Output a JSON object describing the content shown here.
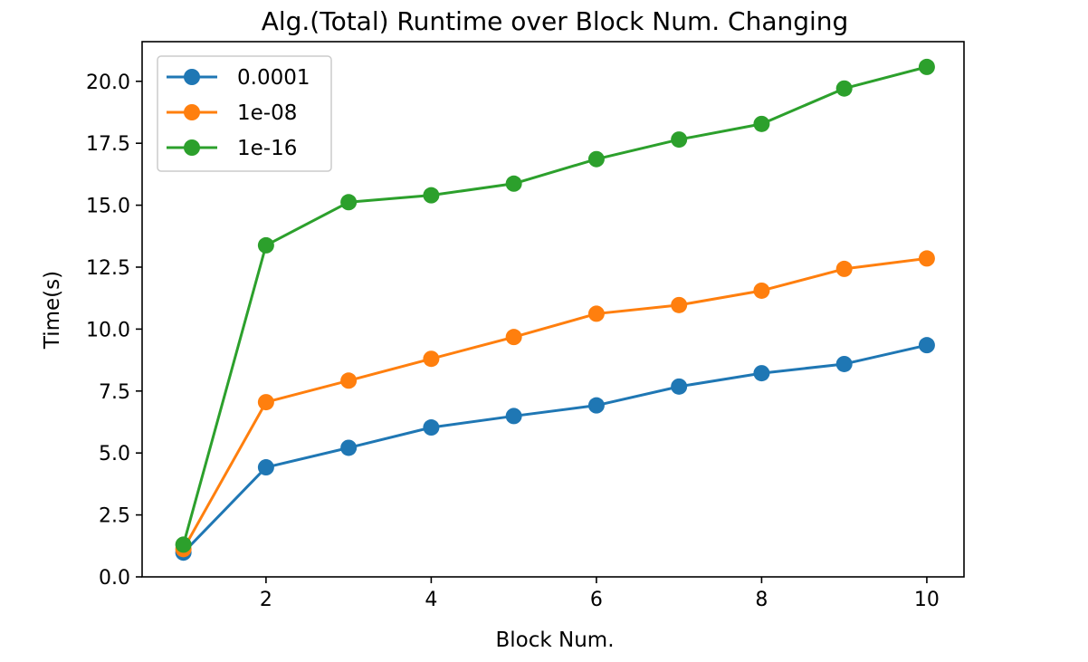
{
  "chart_data": {
    "type": "line",
    "title": "Alg.(Total) Runtime over Block Num. Changing",
    "xlabel": "Block Num.",
    "ylabel": "Time(s)",
    "x": [
      1,
      2,
      3,
      4,
      5,
      6,
      7,
      8,
      9,
      10
    ],
    "xlim": [
      0.5,
      10.45
    ],
    "ylim": [
      0,
      21.6
    ],
    "xticks": [
      2,
      4,
      6,
      8,
      10
    ],
    "yticks": [
      0.0,
      2.5,
      5.0,
      7.5,
      10.0,
      12.5,
      15.0,
      17.5,
      20.0
    ],
    "ytick_labels": [
      "0.0",
      "2.5",
      "5.0",
      "7.5",
      "10.0",
      "12.5",
      "15.0",
      "17.5",
      "20.0"
    ],
    "grid": false,
    "legend_position": "top-left",
    "series": [
      {
        "name": "0.0001",
        "color": "#1f77b4",
        "values": [
          0.98,
          4.42,
          5.21,
          6.03,
          6.49,
          6.92,
          7.68,
          8.22,
          8.59,
          9.35
        ]
      },
      {
        "name": "1e-08",
        "color": "#ff7f0e",
        "values": [
          1.12,
          7.05,
          7.92,
          8.8,
          9.68,
          10.62,
          10.97,
          11.55,
          12.43,
          12.85
        ]
      },
      {
        "name": "1e-16",
        "color": "#2ca02c",
        "values": [
          1.3,
          13.38,
          15.12,
          15.4,
          15.87,
          16.86,
          17.65,
          18.28,
          19.71,
          20.58
        ]
      }
    ]
  }
}
